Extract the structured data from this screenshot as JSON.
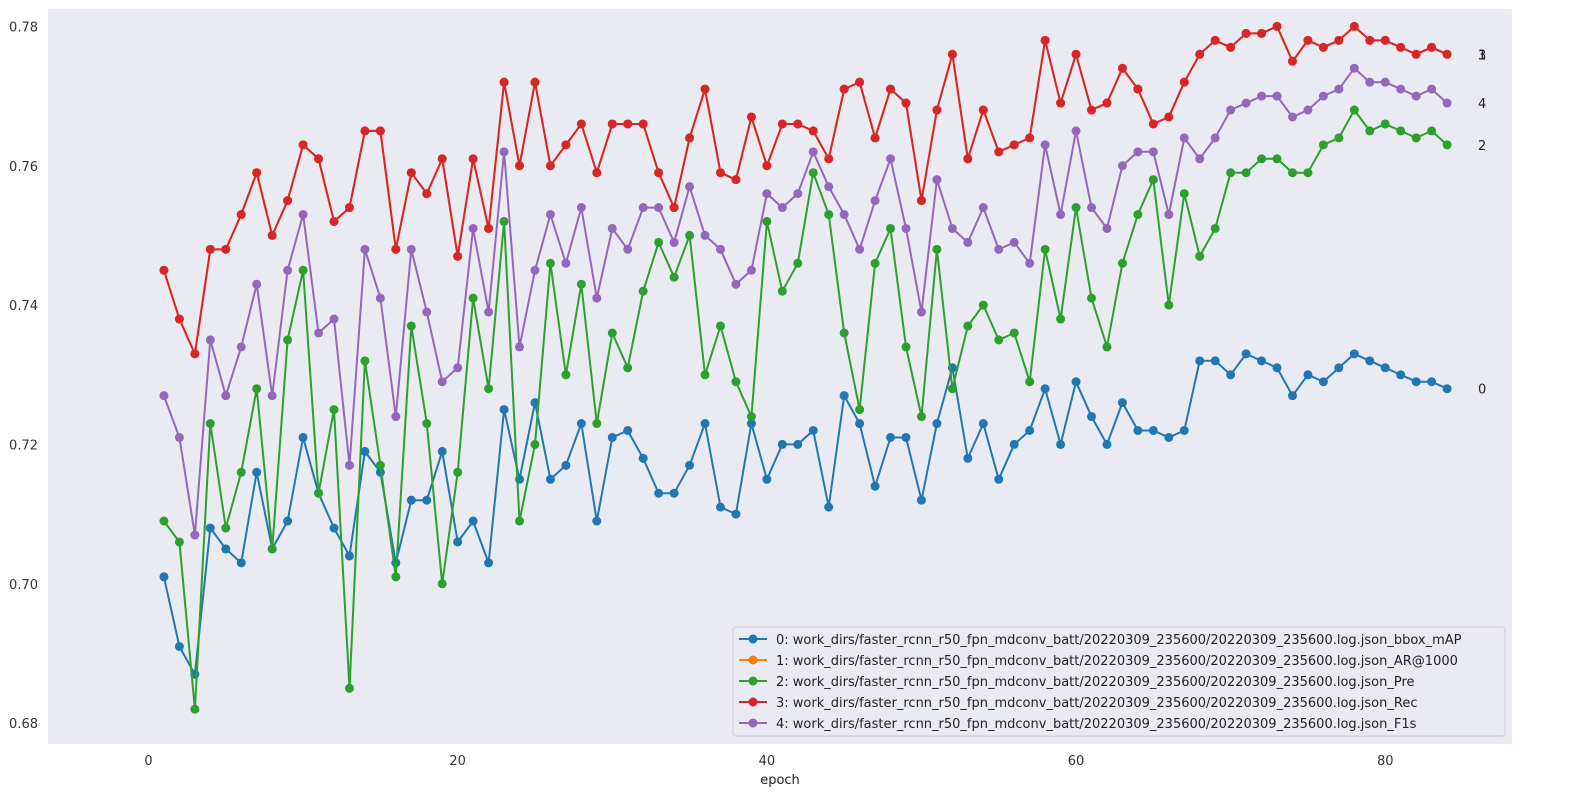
{
  "chart_data": {
    "type": "line",
    "xlabel": "epoch",
    "ylabel": "",
    "xlim": [
      -6.5,
      88.2
    ],
    "ylim": [
      0.677,
      0.7825
    ],
    "xticks": [
      0,
      20,
      40,
      60,
      80
    ],
    "yticks": [
      0.68,
      0.7,
      0.72,
      0.74,
      0.76,
      0.78
    ],
    "grid": false,
    "legend_position": "bottom-right",
    "background": "#eaeaf2",
    "x": [
      1,
      2,
      3,
      4,
      5,
      6,
      7,
      8,
      9,
      10,
      11,
      12,
      13,
      14,
      15,
      16,
      17,
      18,
      19,
      20,
      21,
      22,
      23,
      24,
      25,
      26,
      27,
      28,
      29,
      30,
      31,
      32,
      33,
      34,
      35,
      36,
      37,
      38,
      39,
      40,
      41,
      42,
      43,
      44,
      45,
      46,
      47,
      48,
      49,
      50,
      51,
      52,
      53,
      54,
      55,
      56,
      57,
      58,
      59,
      60,
      61,
      62,
      63,
      64,
      65,
      66,
      67,
      68,
      69,
      70,
      71,
      72,
      73,
      74,
      75,
      76,
      77,
      78,
      79,
      80,
      81,
      82,
      83,
      84
    ],
    "series": [
      {
        "name": "0: work_dirs/faster_rcnn_r50_fpn_mdconv_batt/20220309_235600/20220309_235600.log.json_bbox_mAP",
        "end_label": "0",
        "color": "#1f77b4",
        "values": [
          0.701,
          0.691,
          0.687,
          0.708,
          0.705,
          0.703,
          0.716,
          0.705,
          0.709,
          0.721,
          0.713,
          0.708,
          0.704,
          0.719,
          0.716,
          0.703,
          0.712,
          0.712,
          0.719,
          0.706,
          0.709,
          0.703,
          0.725,
          0.715,
          0.726,
          0.715,
          0.717,
          0.723,
          0.709,
          0.721,
          0.722,
          0.718,
          0.713,
          0.713,
          0.717,
          0.723,
          0.711,
          0.71,
          0.723,
          0.715,
          0.72,
          0.72,
          0.722,
          0.711,
          0.727,
          0.723,
          0.714,
          0.721,
          0.721,
          0.712,
          0.723,
          0.731,
          0.718,
          0.723,
          0.715,
          0.72,
          0.722,
          0.728,
          0.72,
          0.729,
          0.724,
          0.72,
          0.726,
          0.722,
          0.722,
          0.721,
          0.722,
          0.732,
          0.732,
          0.73,
          0.733,
          0.732,
          0.731,
          0.727,
          0.73,
          0.729,
          0.731,
          0.733,
          0.732,
          0.731,
          0.73,
          0.729,
          0.729,
          0.728
        ]
      },
      {
        "name": "1: work_dirs/faster_rcnn_r50_fpn_mdconv_batt/20220309_235600/20220309_235600.log.json_AR@1000",
        "end_label": "1",
        "color": "#ff7f0e",
        "values": [
          0.745,
          0.738,
          0.733,
          0.748,
          0.748,
          0.753,
          0.759,
          0.75,
          0.755,
          0.763,
          0.761,
          0.752,
          0.754,
          0.765,
          0.765,
          0.748,
          0.759,
          0.756,
          0.761,
          0.747,
          0.761,
          0.751,
          0.772,
          0.76,
          0.772,
          0.76,
          0.763,
          0.766,
          0.759,
          0.766,
          0.766,
          0.766,
          0.759,
          0.754,
          0.764,
          0.771,
          0.759,
          0.758,
          0.767,
          0.76,
          0.766,
          0.766,
          0.765,
          0.761,
          0.771,
          0.772,
          0.764,
          0.771,
          0.769,
          0.755,
          0.768,
          0.776,
          0.761,
          0.768,
          0.762,
          0.763,
          0.764,
          0.778,
          0.769,
          0.776,
          0.768,
          0.769,
          0.774,
          0.771,
          0.766,
          0.767,
          0.772,
          0.776,
          0.778,
          0.777,
          0.779,
          0.779,
          0.78,
          0.775,
          0.778,
          0.777,
          0.778,
          0.78,
          0.778,
          0.778,
          0.777,
          0.776,
          0.777,
          0.776
        ]
      },
      {
        "name": "2: work_dirs/faster_rcnn_r50_fpn_mdconv_batt/20220309_235600/20220309_235600.log.json_Pre",
        "end_label": "2",
        "color": "#2ca02c",
        "values": [
          0.709,
          0.706,
          0.682,
          0.723,
          0.708,
          0.716,
          0.728,
          0.705,
          0.735,
          0.745,
          0.713,
          0.725,
          0.685,
          0.732,
          0.717,
          0.701,
          0.737,
          0.723,
          0.7,
          0.716,
          0.741,
          0.728,
          0.752,
          0.709,
          0.72,
          0.746,
          0.73,
          0.743,
          0.723,
          0.736,
          0.731,
          0.742,
          0.749,
          0.744,
          0.75,
          0.73,
          0.737,
          0.729,
          0.724,
          0.752,
          0.742,
          0.746,
          0.759,
          0.753,
          0.736,
          0.725,
          0.746,
          0.751,
          0.734,
          0.724,
          0.748,
          0.728,
          0.737,
          0.74,
          0.735,
          0.736,
          0.729,
          0.748,
          0.738,
          0.754,
          0.741,
          0.734,
          0.746,
          0.753,
          0.758,
          0.74,
          0.756,
          0.747,
          0.751,
          0.759,
          0.759,
          0.761,
          0.761,
          0.759,
          0.759,
          0.763,
          0.764,
          0.768,
          0.765,
          0.766,
          0.765,
          0.764,
          0.765,
          0.763
        ]
      },
      {
        "name": "3: work_dirs/faster_rcnn_r50_fpn_mdconv_batt/20220309_235600/20220309_235600.log.json_Rec",
        "end_label": "3",
        "color": "#d62728",
        "values": [
          0.745,
          0.738,
          0.733,
          0.748,
          0.748,
          0.753,
          0.759,
          0.75,
          0.755,
          0.763,
          0.761,
          0.752,
          0.754,
          0.765,
          0.765,
          0.748,
          0.759,
          0.756,
          0.761,
          0.747,
          0.761,
          0.751,
          0.772,
          0.76,
          0.772,
          0.76,
          0.763,
          0.766,
          0.759,
          0.766,
          0.766,
          0.766,
          0.759,
          0.754,
          0.764,
          0.771,
          0.759,
          0.758,
          0.767,
          0.76,
          0.766,
          0.766,
          0.765,
          0.761,
          0.771,
          0.772,
          0.764,
          0.771,
          0.769,
          0.755,
          0.768,
          0.776,
          0.761,
          0.768,
          0.762,
          0.763,
          0.764,
          0.778,
          0.769,
          0.776,
          0.768,
          0.769,
          0.774,
          0.771,
          0.766,
          0.767,
          0.772,
          0.776,
          0.778,
          0.777,
          0.779,
          0.779,
          0.78,
          0.775,
          0.778,
          0.777,
          0.778,
          0.78,
          0.778,
          0.778,
          0.777,
          0.776,
          0.777,
          0.776
        ]
      },
      {
        "name": "4: work_dirs/faster_rcnn_r50_fpn_mdconv_batt/20220309_235600/20220309_235600.log.json_F1s",
        "end_label": "4",
        "color": "#9467bd",
        "values": [
          0.727,
          0.721,
          0.707,
          0.735,
          0.727,
          0.734,
          0.743,
          0.727,
          0.745,
          0.753,
          0.736,
          0.738,
          0.717,
          0.748,
          0.741,
          0.724,
          0.748,
          0.739,
          0.729,
          0.731,
          0.751,
          0.739,
          0.762,
          0.734,
          0.745,
          0.753,
          0.746,
          0.754,
          0.741,
          0.751,
          0.748,
          0.754,
          0.754,
          0.749,
          0.757,
          0.75,
          0.748,
          0.743,
          0.745,
          0.756,
          0.754,
          0.756,
          0.762,
          0.757,
          0.753,
          0.748,
          0.755,
          0.761,
          0.751,
          0.739,
          0.758,
          0.751,
          0.749,
          0.754,
          0.748,
          0.749,
          0.746,
          0.763,
          0.753,
          0.765,
          0.754,
          0.751,
          0.76,
          0.762,
          0.762,
          0.753,
          0.764,
          0.761,
          0.764,
          0.768,
          0.769,
          0.77,
          0.77,
          0.767,
          0.768,
          0.77,
          0.771,
          0.774,
          0.772,
          0.772,
          0.771,
          0.77,
          0.771,
          0.769
        ]
      }
    ]
  }
}
